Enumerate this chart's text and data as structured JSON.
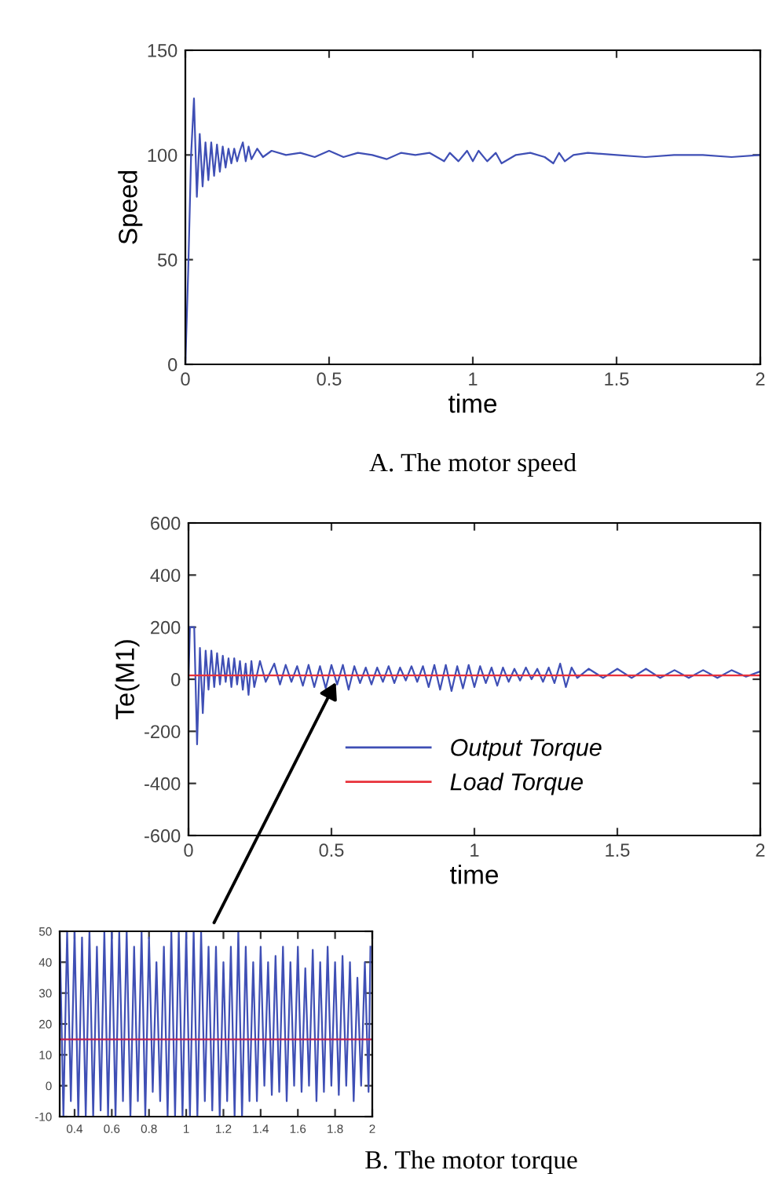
{
  "chart_data": [
    {
      "type": "line",
      "xlabel": "time",
      "ylabel": "Speed",
      "annotations": [
        "A. The motor speed"
      ],
      "xlim": [
        0,
        2
      ],
      "ylim": [
        0,
        150
      ],
      "xticks": [
        0,
        0.5,
        1,
        1.5,
        2
      ],
      "yticks": [
        0,
        50,
        100,
        150
      ],
      "grid": false,
      "legend": false,
      "series": [
        {
          "color": "#3f4fb5",
          "x": [
            0,
            0.01,
            0.02,
            0.03,
            0.04,
            0.05,
            0.06,
            0.07,
            0.08,
            0.09,
            0.1,
            0.11,
            0.12,
            0.13,
            0.14,
            0.15,
            0.16,
            0.17,
            0.18,
            0.19,
            0.2,
            0.21,
            0.22,
            0.23,
            0.25,
            0.27,
            0.3,
            0.35,
            0.4,
            0.45,
            0.5,
            0.55,
            0.6,
            0.65,
            0.7,
            0.75,
            0.8,
            0.85,
            0.9,
            0.92,
            0.95,
            0.98,
            1.0,
            1.02,
            1.05,
            1.08,
            1.1,
            1.15,
            1.2,
            1.25,
            1.28,
            1.3,
            1.32,
            1.35,
            1.4,
            1.5,
            1.6,
            1.7,
            1.8,
            1.9,
            2.0
          ],
          "values": [
            0,
            45,
            100,
            127,
            80,
            110,
            85,
            106,
            88,
            106,
            90,
            105,
            92,
            104,
            94,
            103,
            96,
            103,
            97,
            102,
            106,
            97,
            104,
            98,
            103,
            99,
            102,
            100,
            101,
            99,
            102,
            99,
            101,
            100,
            98,
            101,
            100,
            101,
            97,
            101,
            97,
            102,
            97,
            102,
            97,
            101,
            96,
            100,
            101,
            99,
            96,
            101,
            97,
            100,
            101,
            100,
            99,
            100,
            100,
            99,
            100
          ]
        }
      ]
    },
    {
      "type": "line",
      "xlabel": "time",
      "ylabel": "Te(M1)",
      "annotations": [
        "B. The motor torque"
      ],
      "xlim": [
        0,
        2
      ],
      "ylim": [
        -600,
        600
      ],
      "xticks": [
        0,
        0.5,
        1,
        1.5,
        2
      ],
      "yticks": [
        -600,
        -400,
        -200,
        0,
        200,
        400,
        600
      ],
      "grid": false,
      "legend": "lower center",
      "series": [
        {
          "name": "Output Torque",
          "color": "#3f4fb5",
          "x": [
            0,
            0.005,
            0.02,
            0.03,
            0.04,
            0.05,
            0.06,
            0.07,
            0.08,
            0.09,
            0.1,
            0.11,
            0.12,
            0.13,
            0.14,
            0.15,
            0.16,
            0.17,
            0.18,
            0.19,
            0.2,
            0.21,
            0.22,
            0.23,
            0.25,
            0.27,
            0.3,
            0.32,
            0.34,
            0.36,
            0.38,
            0.4,
            0.42,
            0.44,
            0.46,
            0.48,
            0.5,
            0.52,
            0.54,
            0.56,
            0.58,
            0.6,
            0.62,
            0.64,
            0.66,
            0.68,
            0.7,
            0.72,
            0.74,
            0.76,
            0.78,
            0.8,
            0.82,
            0.84,
            0.86,
            0.88,
            0.9,
            0.92,
            0.94,
            0.96,
            0.98,
            1.0,
            1.02,
            1.04,
            1.06,
            1.08,
            1.1,
            1.12,
            1.14,
            1.16,
            1.18,
            1.2,
            1.22,
            1.24,
            1.26,
            1.28,
            1.3,
            1.32,
            1.34,
            1.36,
            1.4,
            1.45,
            1.5,
            1.55,
            1.6,
            1.65,
            1.7,
            1.75,
            1.8,
            1.85,
            1.9,
            1.95,
            2.0
          ],
          "values": [
            0,
            200,
            200,
            -250,
            120,
            -130,
            110,
            -40,
            110,
            -30,
            100,
            -20,
            90,
            -10,
            80,
            -30,
            80,
            -20,
            70,
            -40,
            60,
            -60,
            70,
            -30,
            70,
            -10,
            60,
            -20,
            55,
            -10,
            50,
            -25,
            55,
            -30,
            50,
            -35,
            55,
            -20,
            55,
            -40,
            50,
            -15,
            45,
            -20,
            45,
            -10,
            50,
            -15,
            45,
            -5,
            50,
            -10,
            50,
            -30,
            55,
            -40,
            55,
            -45,
            50,
            -35,
            55,
            -30,
            50,
            -15,
            45,
            -25,
            45,
            -10,
            40,
            -5,
            45,
            0,
            40,
            -10,
            45,
            -15,
            60,
            -30,
            45,
            5,
            40,
            5,
            40,
            5,
            40,
            5,
            35,
            5,
            35,
            5,
            35,
            10,
            30
          ]
        },
        {
          "name": "Load Torque",
          "color": "#e8313a",
          "x": [
            0,
            2
          ],
          "values": [
            15,
            15
          ]
        }
      ]
    },
    {
      "type": "line",
      "xlim": [
        0.32,
        2
      ],
      "ylim": [
        -10,
        50
      ],
      "xticks": [
        0.4,
        0.6,
        0.8,
        1,
        1.2,
        1.4,
        1.6,
        1.8,
        2
      ],
      "yticks": [
        -10,
        0,
        10,
        20,
        30,
        40,
        50
      ],
      "grid": false,
      "legend": false,
      "series": [
        {
          "color": "#3f4fb5",
          "x": [
            0.32,
            0.34,
            0.36,
            0.38,
            0.4,
            0.42,
            0.44,
            0.46,
            0.48,
            0.5,
            0.52,
            0.54,
            0.56,
            0.58,
            0.6,
            0.62,
            0.64,
            0.66,
            0.68,
            0.7,
            0.72,
            0.74,
            0.76,
            0.78,
            0.8,
            0.82,
            0.84,
            0.86,
            0.88,
            0.9,
            0.92,
            0.94,
            0.96,
            0.98,
            1.0,
            1.02,
            1.04,
            1.06,
            1.08,
            1.1,
            1.12,
            1.14,
            1.16,
            1.18,
            1.2,
            1.22,
            1.24,
            1.26,
            1.28,
            1.3,
            1.32,
            1.34,
            1.36,
            1.38,
            1.4,
            1.42,
            1.44,
            1.46,
            1.48,
            1.5,
            1.52,
            1.54,
            1.56,
            1.58,
            1.6,
            1.62,
            1.64,
            1.66,
            1.68,
            1.7,
            1.72,
            1.74,
            1.76,
            1.78,
            1.8,
            1.82,
            1.84,
            1.86,
            1.88,
            1.9,
            1.92,
            1.94,
            1.96,
            1.98,
            1.99
          ],
          "values": [
            50,
            -10,
            50,
            -5,
            50,
            -10,
            48,
            -10,
            50,
            -10,
            45,
            -8,
            50,
            -10,
            50,
            -10,
            50,
            -5,
            50,
            -10,
            45,
            -5,
            50,
            -10,
            48,
            -2,
            40,
            -5,
            45,
            -10,
            50,
            -10,
            50,
            -10,
            50,
            -10,
            50,
            -10,
            50,
            -5,
            45,
            -8,
            45,
            -10,
            40,
            -5,
            45,
            -10,
            50,
            -10,
            45,
            -5,
            40,
            -5,
            45,
            0,
            40,
            -3,
            42,
            -2,
            45,
            -5,
            40,
            0,
            45,
            -2,
            38,
            0,
            44,
            -5,
            40,
            -2,
            45,
            0,
            40,
            -3,
            42,
            0,
            40,
            -5,
            35,
            0,
            40,
            -2,
            45
          ]
        },
        {
          "color": "#c0204f",
          "x": [
            0.32,
            2
          ],
          "values": [
            15,
            15
          ]
        }
      ]
    }
  ]
}
